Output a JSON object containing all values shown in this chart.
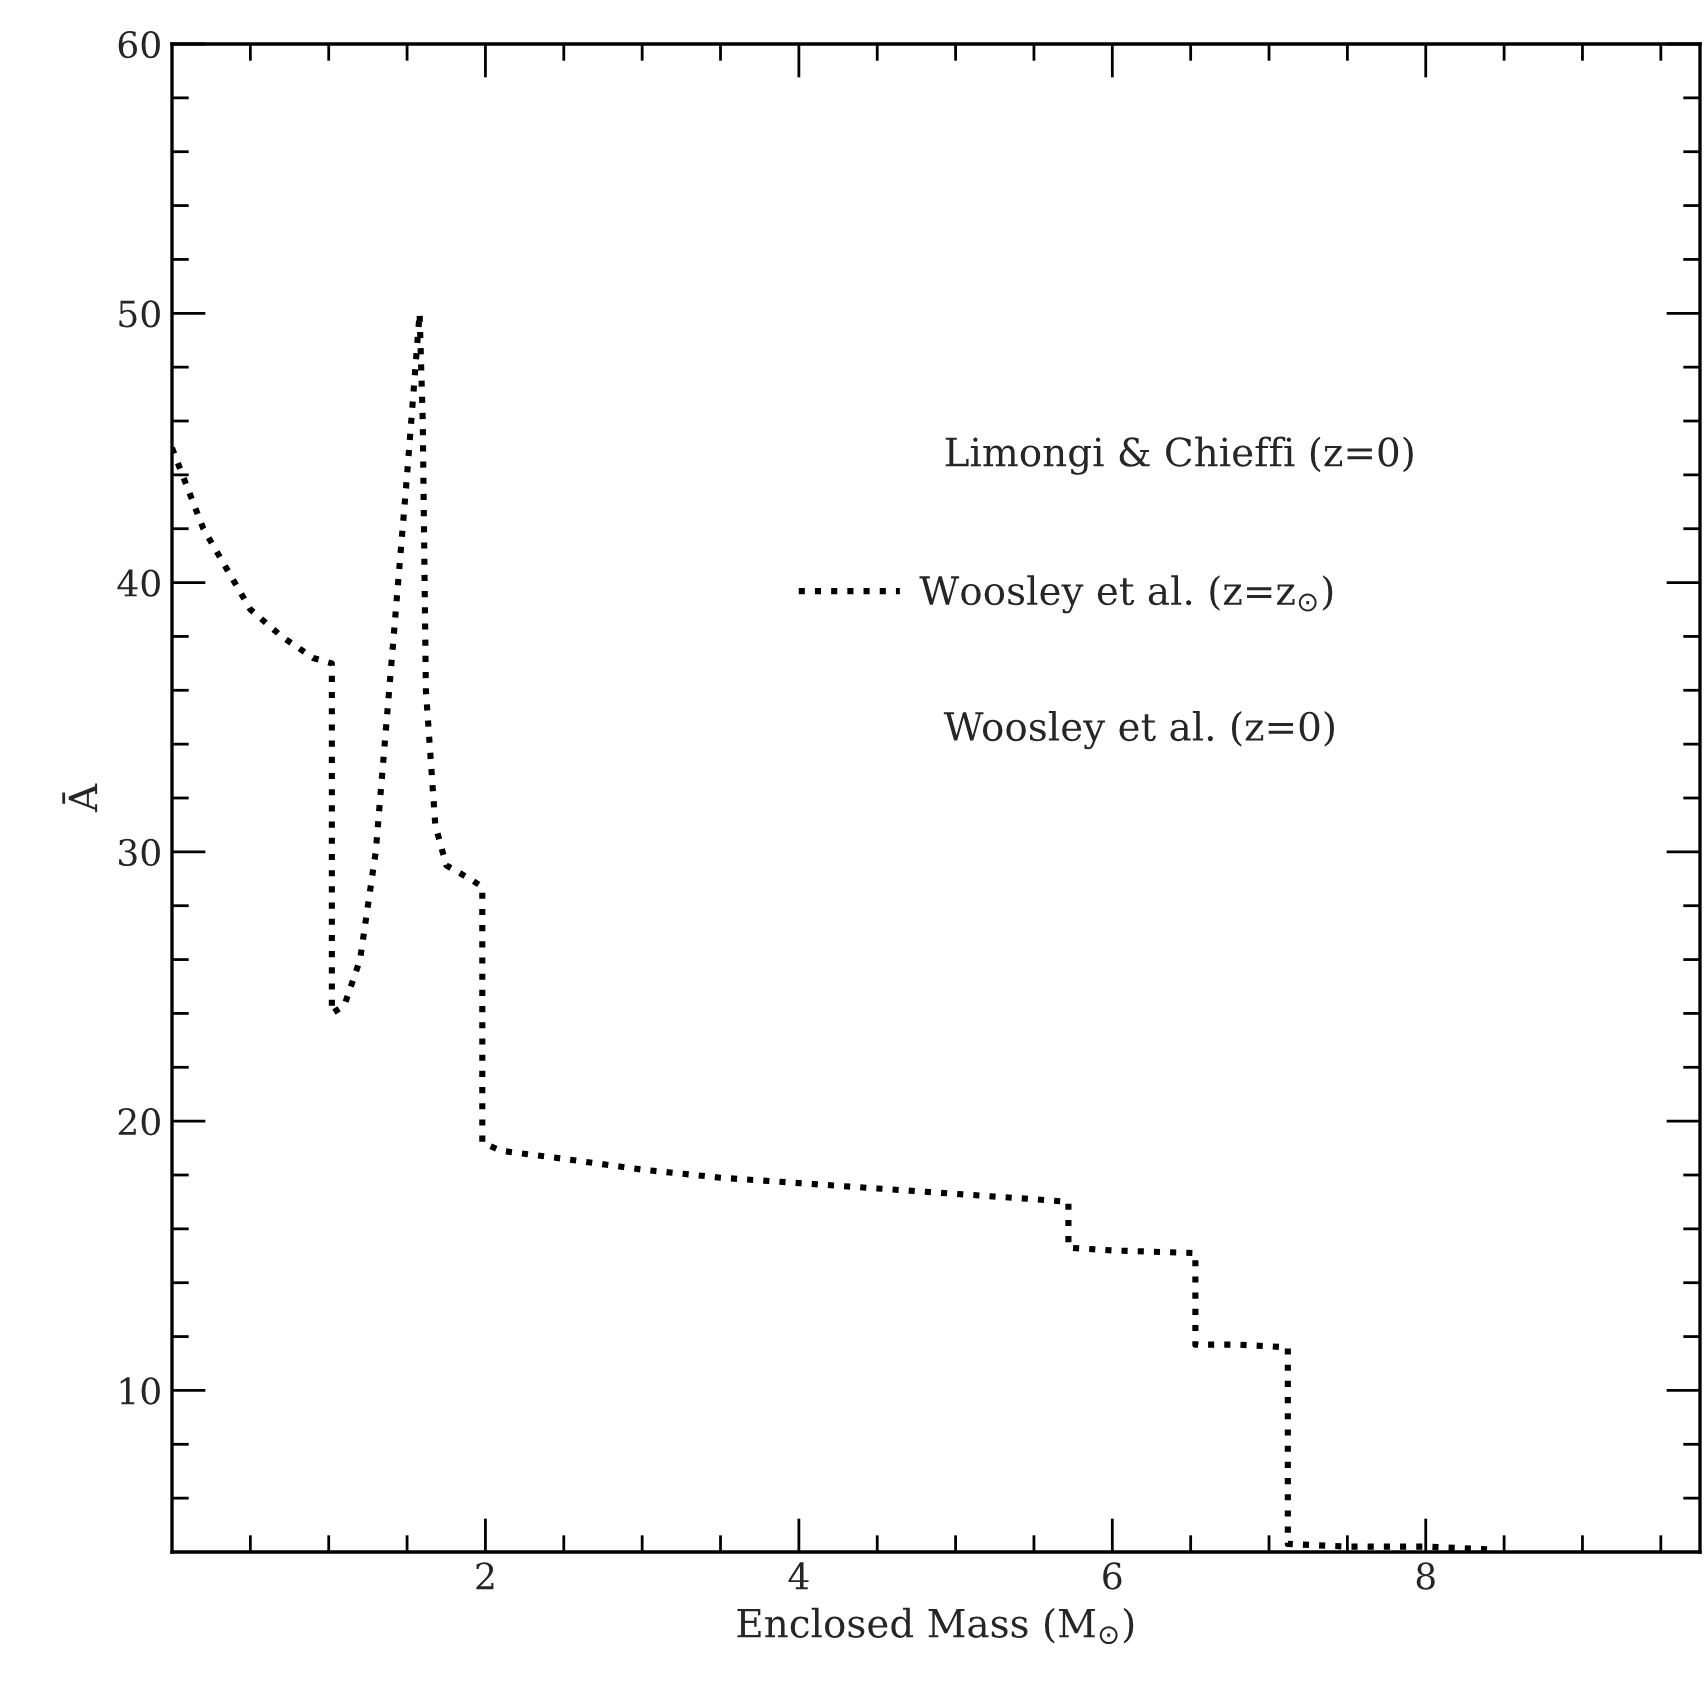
{
  "chart_data": {
    "type": "line",
    "xlabel": "Enclosed Mass (M$_{⊙}$)",
    "ylabel": "Ā",
    "series": [
      {
        "name": "Woosley et al. (z=z$_{⊙}$)",
        "color": "#000000",
        "line_style": "dotted",
        "x": [
          0,
          0.1,
          0.2,
          0.35,
          0.5,
          0.7,
          0.9,
          1.02,
          1.02,
          1.1,
          1.2,
          1.3,
          1.4,
          1.5,
          1.58,
          1.6,
          1.62,
          1.68,
          1.75,
          1.9,
          1.98,
          1.98,
          2.1,
          2.5,
          3,
          3.5,
          4,
          4.5,
          5,
          5.5,
          5.72,
          5.72,
          6,
          6.53,
          6.53,
          6.8,
          7.12,
          7.12,
          7.5,
          8,
          8.4
        ],
        "values": [
          45,
          43.5,
          42,
          40.5,
          39,
          38,
          37.2,
          37,
          24,
          24.3,
          26,
          30,
          37,
          44,
          50,
          46,
          36,
          31,
          29.5,
          29,
          28.7,
          19.2,
          18.9,
          18.6,
          18.2,
          17.9,
          17.7,
          17.5,
          17.3,
          17.1,
          17,
          15.3,
          15.2,
          15.1,
          11.7,
          11.7,
          11.6,
          4.3,
          4.2,
          4.2,
          4.1
        ]
      }
    ],
    "annotations": [
      "Limongi & Chieffi (z=0)",
      "Woosley et al. (z=0)"
    ],
    "legend": "top right",
    "xlim": [
      0,
      9.75
    ],
    "xticks": [
      {
        "value": 0.5,
        "label": null
      },
      {
        "value": 1,
        "label": null
      },
      {
        "value": 1.5,
        "label": null
      },
      2,
      {
        "value": 2.5,
        "label": null
      },
      {
        "value": 3,
        "label": null
      },
      {
        "value": 3.5,
        "label": null
      },
      4,
      {
        "value": 4.5,
        "label": null
      },
      {
        "value": 5,
        "label": null
      },
      {
        "value": 5.5,
        "label": null
      },
      6,
      {
        "value": 6.5,
        "label": null
      },
      {
        "value": 7,
        "label": null
      },
      {
        "value": 7.5,
        "label": null
      },
      8,
      {
        "value": 8.5,
        "label": null
      },
      {
        "value": 9,
        "label": null
      },
      {
        "value": 9.5,
        "label": null
      }
    ],
    "ylim": [
      4,
      60
    ],
    "yticks": [
      {
        "value": 6,
        "label": null
      },
      {
        "value": 8,
        "label": null
      },
      10,
      {
        "value": 12,
        "label": null
      },
      {
        "value": 14,
        "label": null
      },
      {
        "value": 16,
        "label": null
      },
      {
        "value": 18,
        "label": null
      },
      20,
      {
        "value": 22,
        "label": null
      },
      {
        "value": 24,
        "label": null
      },
      {
        "value": 26,
        "label": null
      },
      {
        "value": 28,
        "label": null
      },
      30,
      {
        "value": 32,
        "label": null
      },
      {
        "value": 34,
        "label": null
      },
      {
        "value": 36,
        "label": null
      },
      {
        "value": 38,
        "label": null
      },
      40,
      {
        "value": 42,
        "label": null
      },
      {
        "value": 44,
        "label": null
      },
      {
        "value": 46,
        "label": null
      },
      {
        "value": 48,
        "label": null
      },
      50,
      {
        "value": 52,
        "label": null
      },
      {
        "value": 54,
        "label": null
      },
      {
        "value": 56,
        "label": null
      },
      {
        "value": 58,
        "label": null
      },
      60
    ],
    "grid": false
  }
}
